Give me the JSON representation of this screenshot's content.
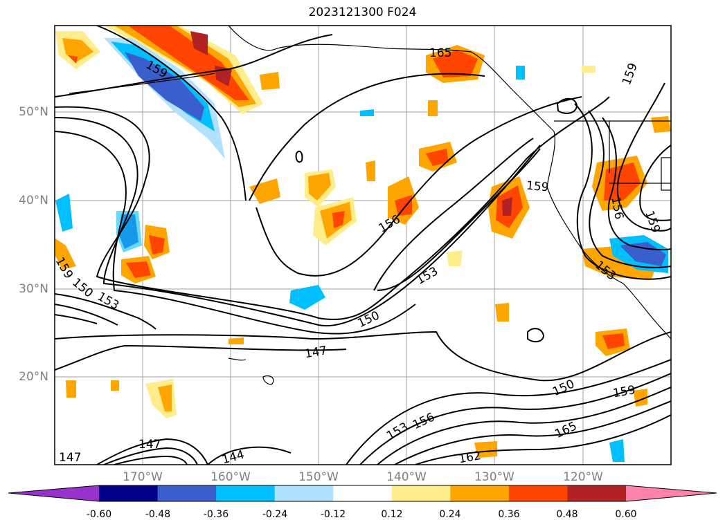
{
  "title": "2023121300 F024",
  "latitude_labels": [
    "50°N",
    "40°N",
    "30°N",
    "20°N"
  ],
  "longitude_labels": [
    "170°W",
    "160°W",
    "150°W",
    "140°W",
    "130°W",
    "120°W"
  ],
  "contour_labels": [
    "147",
    "147",
    "150",
    "150",
    "153",
    "153",
    "153",
    "156",
    "156",
    "156",
    "159",
    "159",
    "159",
    "159",
    "159",
    "159",
    "162",
    "165",
    "165",
    "144",
    "147",
    "150",
    "153"
  ],
  "colorbar": {
    "ticks": [
      "-0.60",
      "-0.48",
      "-0.36",
      "-0.24",
      "-0.12",
      "0.12",
      "0.24",
      "0.36",
      "0.48",
      "0.60"
    ],
    "colors": [
      "#9932cc",
      "#00008b",
      "#3a5fcd",
      "#00bfff",
      "#b0e2ff",
      "#ffffff",
      "#ffec8b",
      "#ffa500",
      "#ff4500",
      "#b22222",
      "#ff82ab"
    ]
  }
}
